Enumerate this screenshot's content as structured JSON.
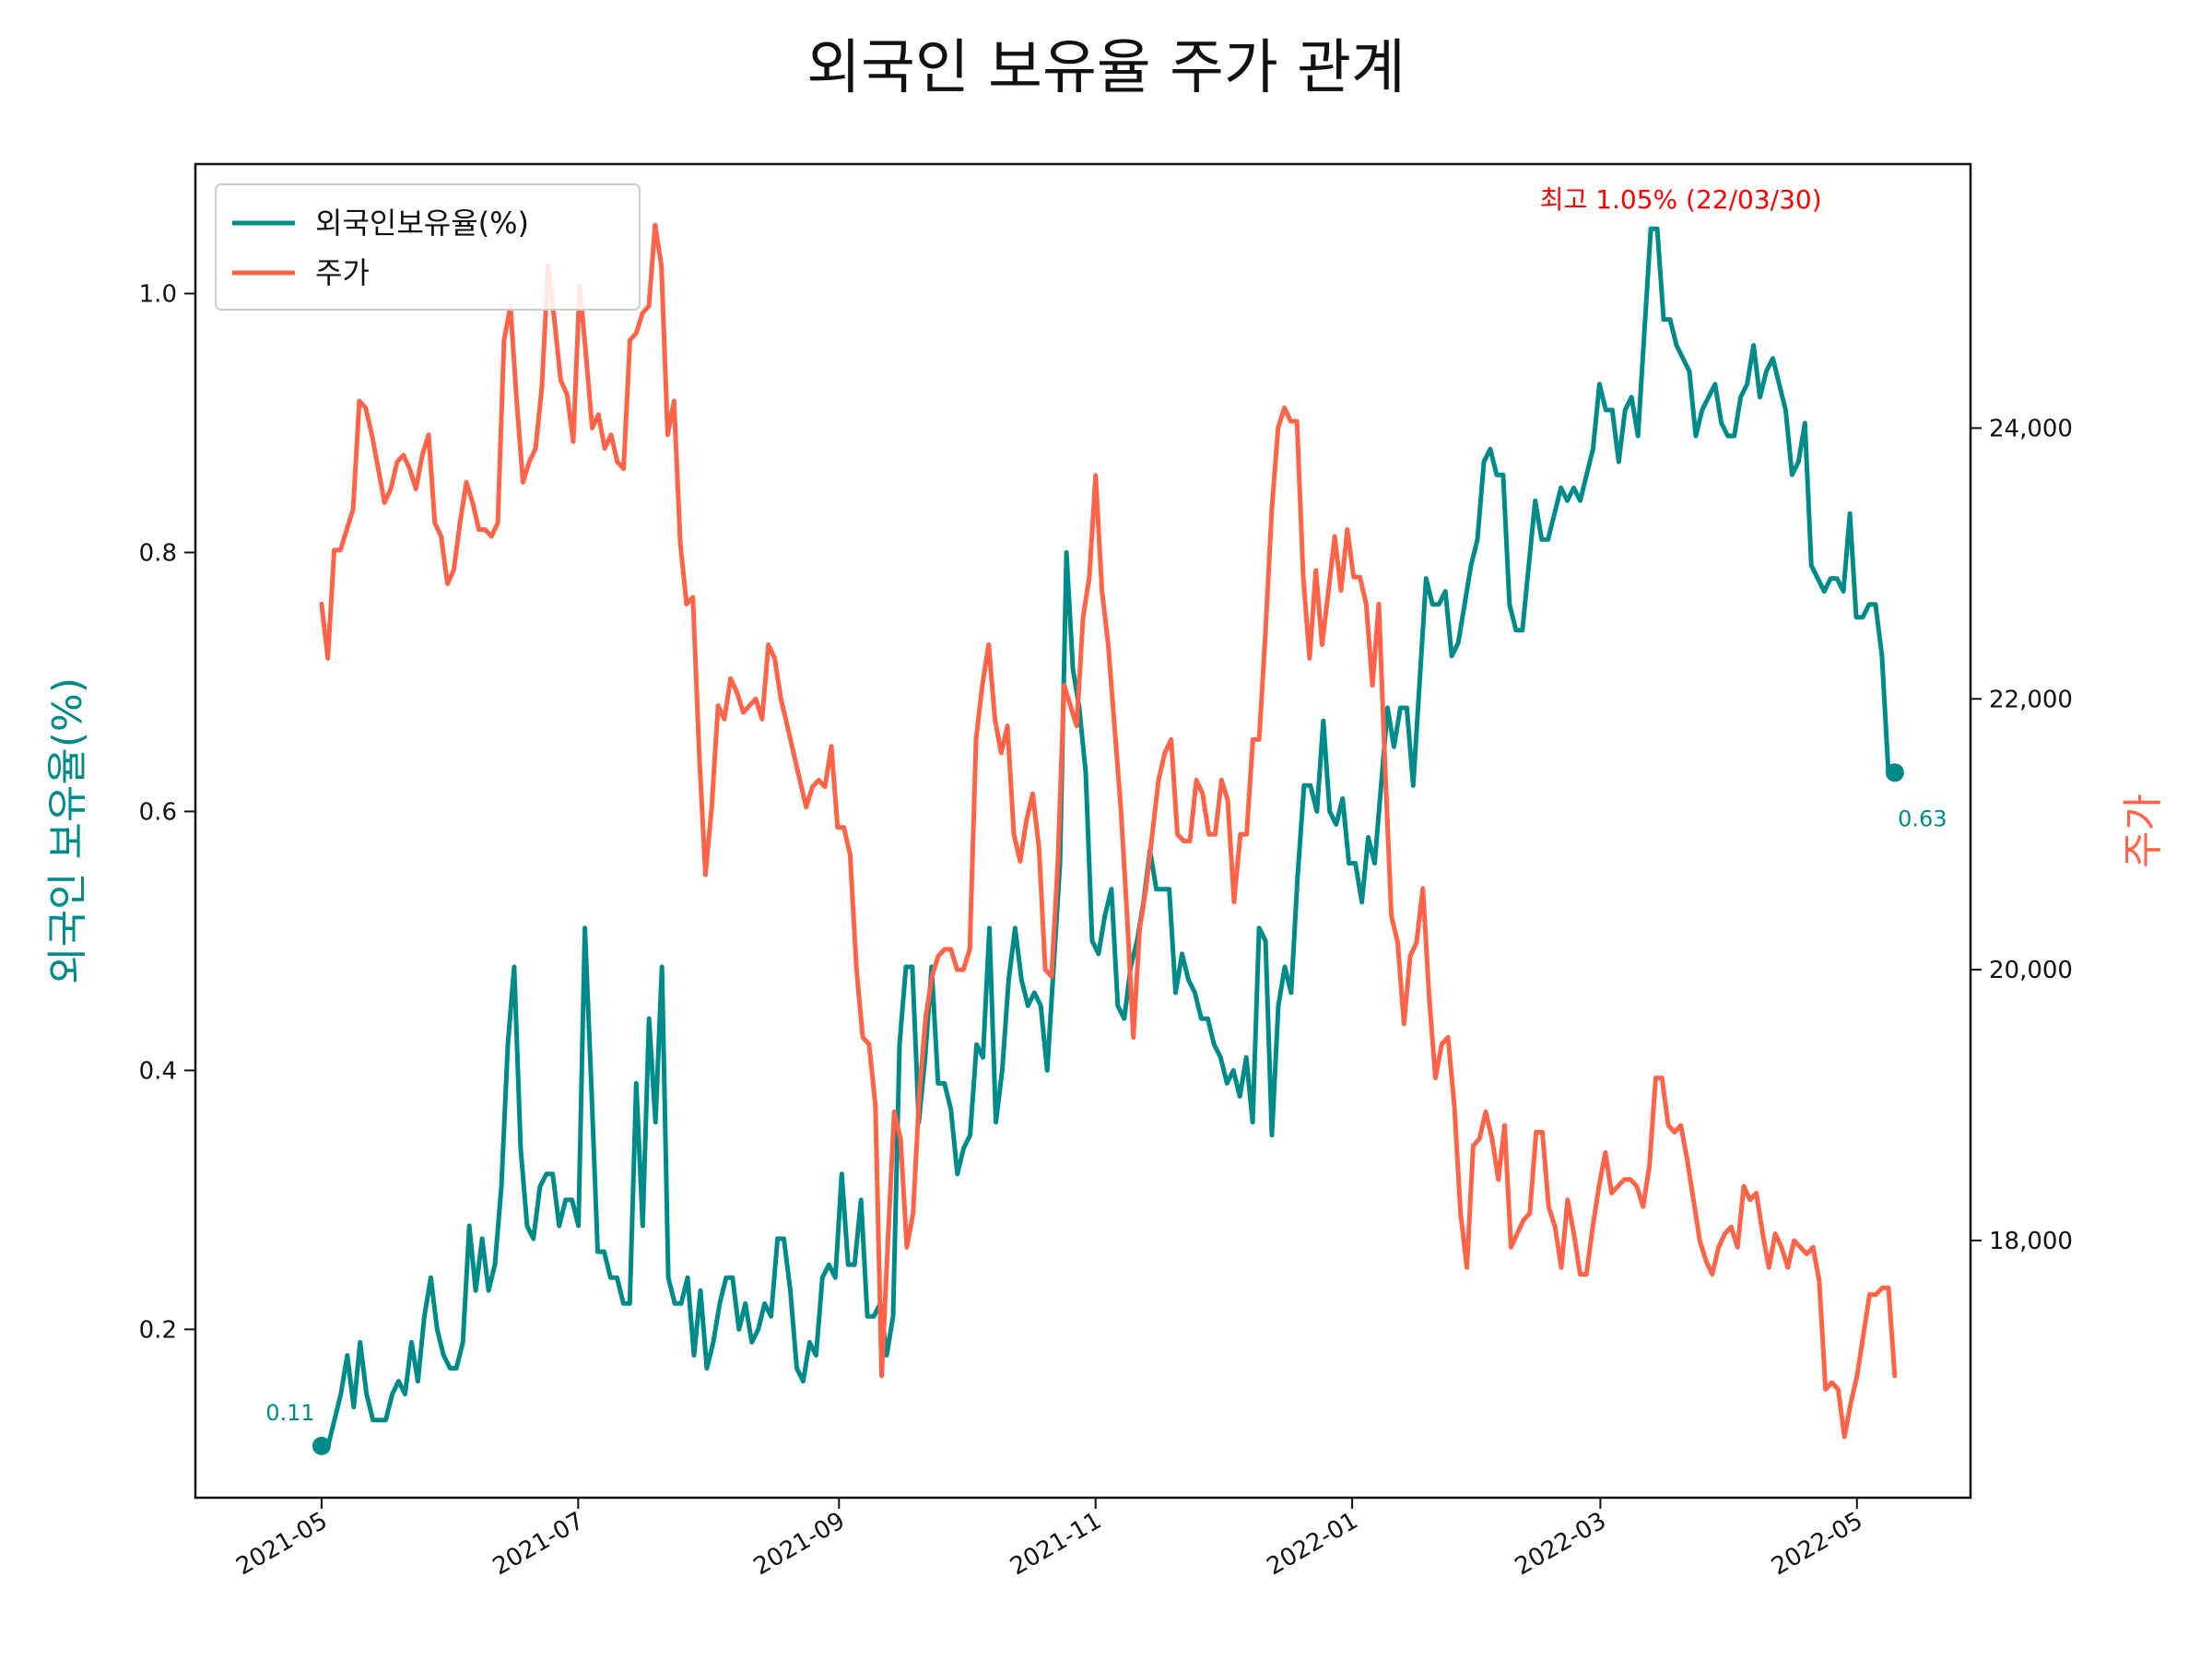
{
  "chart_data": {
    "type": "line",
    "title": "외국인 보유율 주가 관계",
    "ylabel_left": "외국인 보유율(%)",
    "ylabel_right": "주가",
    "colors": {
      "left": "#008b8b",
      "right": "#ff6347",
      "annotation_max": "#ff0000"
    },
    "x_start": "2021-05-01",
    "x_end": "2022-05-10",
    "xlim": [
      "2021-04-01",
      "2022-05-28"
    ],
    "ylim_left": [
      0.07,
      1.1
    ],
    "ylim_right": [
      16100,
      25950
    ],
    "x_ticks": [
      {
        "date": "2021-05-01",
        "label": "2021-05"
      },
      {
        "date": "2021-07-01",
        "label": "2021-07"
      },
      {
        "date": "2021-09-01",
        "label": "2021-09"
      },
      {
        "date": "2021-11-01",
        "label": "2021-11"
      },
      {
        "date": "2022-01-01",
        "label": "2022-01"
      },
      {
        "date": "2022-03-01",
        "label": "2022-03"
      },
      {
        "date": "2022-05-01",
        "label": "2022-05"
      }
    ],
    "y_ticks_left": [
      {
        "value": 0.2,
        "label": "0.2"
      },
      {
        "value": 0.4,
        "label": "0.4"
      },
      {
        "value": 0.6,
        "label": "0.6"
      },
      {
        "value": 0.8,
        "label": "0.8"
      },
      {
        "value": 1.0,
        "label": "1.0"
      }
    ],
    "y_ticks_right": [
      {
        "value": 18000,
        "label": "18,000"
      },
      {
        "value": 20000,
        "label": "20,000"
      },
      {
        "value": 22000,
        "label": "22,000"
      },
      {
        "value": 24000,
        "label": "24,000"
      }
    ],
    "series": [
      {
        "name": "외국인보유율(%)",
        "axis": "left",
        "values": [
          0.11,
          0.11,
          0.13,
          0.15,
          0.18,
          0.14,
          0.19,
          0.15,
          0.13,
          0.13,
          0.13,
          0.15,
          0.16,
          0.15,
          0.19,
          0.16,
          0.21,
          0.24,
          0.2,
          0.18,
          0.17,
          0.17,
          0.19,
          0.28,
          0.23,
          0.27,
          0.23,
          0.25,
          0.31,
          0.42,
          0.48,
          0.34,
          0.28,
          0.27,
          0.31,
          0.32,
          0.32,
          0.28,
          0.3,
          0.3,
          0.28,
          0.51,
          0.39,
          0.26,
          0.26,
          0.24,
          0.24,
          0.22,
          0.22,
          0.39,
          0.28,
          0.44,
          0.36,
          0.48,
          0.24,
          0.22,
          0.22,
          0.24,
          0.18,
          0.23,
          0.17,
          0.19,
          0.22,
          0.24,
          0.24,
          0.2,
          0.22,
          0.19,
          0.2,
          0.22,
          0.21,
          0.27,
          0.27,
          0.23,
          0.17,
          0.16,
          0.19,
          0.18,
          0.24,
          0.25,
          0.24,
          0.32,
          0.25,
          0.25,
          0.3,
          0.21,
          0.21,
          0.22,
          0.18,
          0.21,
          0.42,
          0.48,
          0.48,
          0.36,
          0.41,
          0.48,
          0.39,
          0.39,
          0.37,
          0.32,
          0.34,
          0.35,
          0.42,
          0.41,
          0.51,
          0.36,
          0.4,
          0.47,
          0.51,
          0.47,
          0.45,
          0.46,
          0.45,
          0.4,
          0.48,
          0.56,
          0.8,
          0.71,
          0.68,
          0.63,
          0.5,
          0.49,
          0.52,
          0.54,
          0.45,
          0.44,
          0.48,
          0.5,
          0.53,
          0.57,
          0.54,
          0.54,
          0.54,
          0.46,
          0.49,
          0.47,
          0.46,
          0.44,
          0.44,
          0.42,
          0.41,
          0.39,
          0.4,
          0.38,
          0.41,
          0.36,
          0.51,
          0.5,
          0.35,
          0.45,
          0.48,
          0.46,
          0.55,
          0.62,
          0.62,
          0.6,
          0.67,
          0.6,
          0.59,
          0.61,
          0.56,
          0.56,
          0.53,
          0.58,
          0.56,
          0.62,
          0.68,
          0.65,
          0.68,
          0.68,
          0.62,
          0.7,
          0.78,
          0.76,
          0.76,
          0.77,
          0.72,
          0.73,
          0.76,
          0.79,
          0.81,
          0.87,
          0.88,
          0.86,
          0.86,
          0.76,
          0.74,
          0.74,
          0.79,
          0.84,
          0.81,
          0.81,
          0.83,
          0.85,
          0.84,
          0.85,
          0.84,
          0.86,
          0.88,
          0.93,
          0.91,
          0.91,
          0.87,
          0.91,
          0.92,
          0.89,
          0.97,
          1.05,
          1.05,
          0.98,
          0.98,
          0.96,
          0.95,
          0.94,
          0.89,
          0.91,
          0.92,
          0.93,
          0.9,
          0.89,
          0.89,
          0.92,
          0.93,
          0.96,
          0.92,
          0.94,
          0.95,
          0.93,
          0.91,
          0.86,
          0.87,
          0.9,
          0.79,
          0.78,
          0.77,
          0.78,
          0.78,
          0.77,
          0.83,
          0.75,
          0.75,
          0.76,
          0.76,
          0.72,
          0.63,
          0.63
        ]
      },
      {
        "name": "주가",
        "axis": "right",
        "values": [
          22700,
          22300,
          23100,
          23100,
          23250,
          23400,
          24200,
          24150,
          23950,
          23700,
          23450,
          23550,
          23750,
          23800,
          23700,
          23550,
          23800,
          23950,
          23300,
          23200,
          22850,
          22950,
          23300,
          23600,
          23450,
          23250,
          23250,
          23200,
          23300,
          24650,
          24900,
          24200,
          23600,
          23750,
          23850,
          24300,
          25200,
          24800,
          24350,
          24250,
          23900,
          25050,
          24550,
          24000,
          24100,
          23850,
          23950,
          23750,
          23700,
          24650,
          24700,
          24850,
          24900,
          25500,
          25200,
          23950,
          24200,
          23150,
          22700,
          22750,
          21600,
          20700,
          21200,
          21950,
          21850,
          22150,
          22050,
          21900,
          21950,
          22000,
          21850,
          22400,
          22300,
          22000,
          21800,
          21600,
          21400,
          21200,
          21350,
          21400,
          21350,
          21650,
          21050,
          21050,
          20850,
          20000,
          19500,
          19450,
          19000,
          17000,
          18000,
          18950,
          18750,
          17950,
          18200,
          19100,
          19650,
          19950,
          20100,
          20150,
          20150,
          20000,
          20000,
          20150,
          21700,
          22100,
          22400,
          21850,
          21600,
          21800,
          21000,
          20800,
          21100,
          21300,
          20900,
          20000,
          19950,
          20800,
          22100,
          21950,
          21800,
          22600,
          22900,
          23650,
          22800,
          22400,
          21800,
          21200,
          20400,
          19500,
          20300,
          20600,
          21000,
          21400,
          21600,
          21700,
          21000,
          20950,
          20950,
          21400,
          21300,
          21000,
          21000,
          21400,
          21250,
          20500,
          21000,
          21000,
          21700,
          21700,
          22500,
          23400,
          24000,
          24150,
          24050,
          24050,
          22900,
          22300,
          22950,
          22400,
          22800,
          23200,
          22800,
          23250,
          22900,
          22900,
          22700,
          22100,
          22700,
          21500,
          20400,
          20200,
          19600,
          20100,
          20200,
          20600,
          19800,
          19200,
          19450,
          19500,
          19000,
          18200,
          17800,
          18700,
          18750,
          18950,
          18750,
          18450,
          18850,
          17950,
          18050,
          18150,
          18200,
          18800,
          18800,
          18250,
          18100,
          17800,
          18300,
          18050,
          17750,
          17750,
          18100,
          18400,
          18650,
          18350,
          18400,
          18450,
          18450,
          18400,
          18250,
          18550,
          19200,
          19200,
          18850,
          18800,
          18850,
          18600,
          18300,
          18000,
          17850,
          17750,
          17950,
          18050,
          18100,
          17950,
          18400,
          18300,
          18350,
          18050,
          17800,
          18050,
          17950,
          17800,
          18000,
          17950,
          17900,
          17950,
          17700,
          16900,
          16950,
          16900,
          16550,
          16800,
          17000,
          17300,
          17600,
          17600,
          17650,
          17650,
          17000
        ]
      }
    ],
    "legend": {
      "placement": "top-left",
      "entries": [
        {
          "label": "외국인보유율(%)",
          "color": "#008b8b"
        },
        {
          "label": "주가",
          "color": "#ff6347"
        }
      ]
    },
    "annotations": {
      "max": {
        "text": "최고 1.05% (22/03/30)",
        "date": "2022-03-30",
        "value": 1.05
      },
      "start": {
        "text": "0.11",
        "value": 0.11,
        "date": "2021-05-01"
      },
      "end": {
        "text": "0.63",
        "value": 0.63,
        "date": "2022-05-10"
      }
    }
  }
}
